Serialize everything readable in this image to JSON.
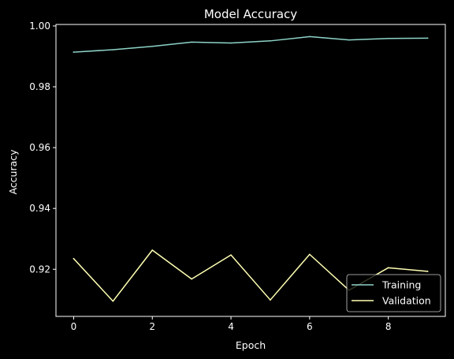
{
  "chart_data": {
    "type": "line",
    "title": "Model Accuracy",
    "xlabel": "Epoch",
    "ylabel": "Accuracy",
    "x": [
      0,
      1,
      2,
      3,
      4,
      5,
      6,
      7,
      8,
      9
    ],
    "xlim": [
      -0.45,
      9.45
    ],
    "ylim": [
      0.9045,
      1.0005
    ],
    "xticks": [
      0,
      2,
      4,
      6,
      8
    ],
    "xtick_labels": [
      "0",
      "2",
      "4",
      "6",
      "8"
    ],
    "yticks": [
      0.92,
      0.94,
      0.96,
      0.98,
      1.0
    ],
    "ytick_labels": [
      "0.92",
      "0.94",
      "0.96",
      "0.98",
      "1.00"
    ],
    "grid": false,
    "legend_position": "lower-right",
    "background": "#000000",
    "foreground": "#ffffff",
    "series": [
      {
        "name": "Training",
        "color": "#8dd3c7",
        "values": [
          0.9914,
          0.9922,
          0.9933,
          0.9947,
          0.9944,
          0.9951,
          0.9965,
          0.9954,
          0.9959,
          0.996
        ]
      },
      {
        "name": "Validation",
        "color": "#ffffb3",
        "values": [
          0.9235,
          0.9095,
          0.9263,
          0.9168,
          0.9247,
          0.9099,
          0.9249,
          0.9131,
          0.9205,
          0.9193
        ]
      }
    ]
  }
}
